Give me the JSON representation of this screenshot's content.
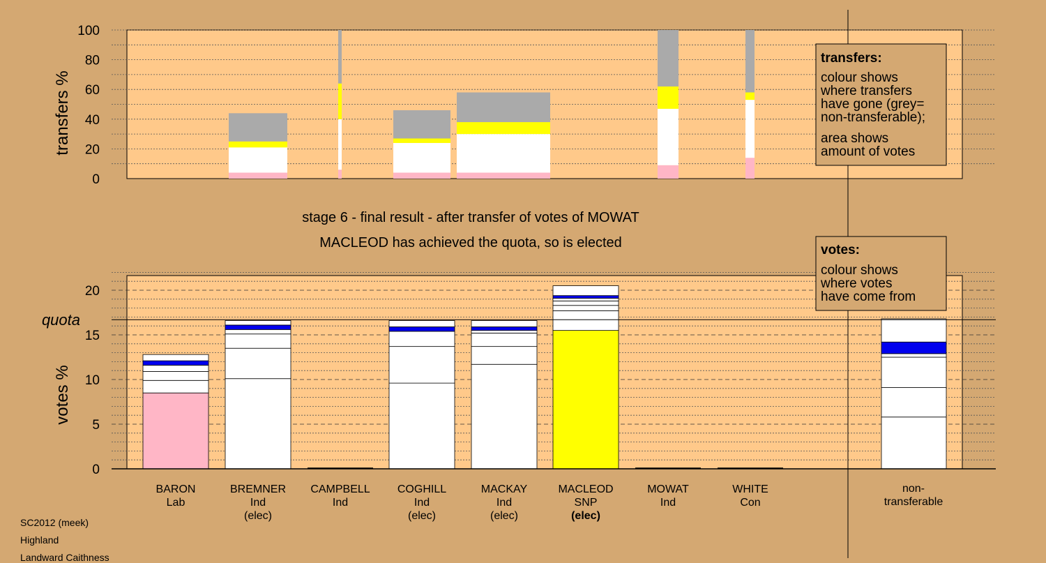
{
  "chart_data": [
    {
      "type": "bar",
      "ylabel": "transfers %",
      "ylim": [
        0,
        100
      ],
      "yticks": [
        0,
        20,
        40,
        60,
        80,
        100
      ],
      "colors": {
        "pink": "#ffb6c6",
        "white": "#ffffff",
        "yellow": "#ffff00",
        "grey": "#aaaaaa"
      },
      "bars": [
        {
          "candidate": "BREMNER",
          "segments": [
            {
              "color": "pink",
              "value": 4
            },
            {
              "color": "white",
              "value": 17
            },
            {
              "color": "yellow",
              "value": 4
            },
            {
              "color": "grey",
              "value": 19
            }
          ]
        },
        {
          "candidate": "CAMPBELL",
          "segments": [
            {
              "color": "pink",
              "value": 6
            },
            {
              "color": "white",
              "value": 34
            },
            {
              "color": "yellow",
              "value": 24
            },
            {
              "color": "grey",
              "value": 36
            }
          ]
        },
        {
          "candidate": "COGHILL",
          "segments": [
            {
              "color": "pink",
              "value": 4
            },
            {
              "color": "white",
              "value": 20
            },
            {
              "color": "yellow",
              "value": 3
            },
            {
              "color": "grey",
              "value": 19
            }
          ]
        },
        {
          "candidate": "MACKAY",
          "segments": [
            {
              "color": "pink",
              "value": 4
            },
            {
              "color": "white",
              "value": 26
            },
            {
              "color": "yellow",
              "value": 8
            },
            {
              "color": "grey",
              "value": 20
            }
          ]
        },
        {
          "candidate": "MOWAT",
          "segments": [
            {
              "color": "pink",
              "value": 9
            },
            {
              "color": "white",
              "value": 38
            },
            {
              "color": "yellow",
              "value": 15
            },
            {
              "color": "grey",
              "value": 38
            }
          ]
        },
        {
          "candidate": "WHITE",
          "segments": [
            {
              "color": "pink",
              "value": 14
            },
            {
              "color": "white",
              "value": 39
            },
            {
              "color": "yellow",
              "value": 5
            },
            {
              "color": "grey",
              "value": 42
            }
          ]
        }
      ],
      "legend": {
        "title": "transfers:",
        "line1": "colour shows",
        "line2": "where transfers",
        "line3": "have gone (grey=",
        "line4": "non-transferable);",
        "line5": "area shows",
        "line6": "amount of votes"
      }
    },
    {
      "type": "bar",
      "title_line1": "stage 6 - final result - after transfer of votes of MOWAT",
      "title_line2": "MACLEOD has achieved the quota, so is elected",
      "ylabel": "votes %",
      "ylim": [
        0,
        22
      ],
      "yticks": [
        0,
        5,
        10,
        15,
        20
      ],
      "quota_label": "quota",
      "quota": 16.7,
      "categories": [
        {
          "name": "BARON",
          "party": "Lab",
          "status": ""
        },
        {
          "name": "BREMNER",
          "party": "Ind",
          "status": "(elec)"
        },
        {
          "name": "CAMPBELL",
          "party": "Ind",
          "status": ""
        },
        {
          "name": "COGHILL",
          "party": "Ind",
          "status": "(elec)"
        },
        {
          "name": "MACKAY",
          "party": "Ind",
          "status": "(elec)"
        },
        {
          "name": "MACLEOD",
          "party": "SNP",
          "status": "(elec)"
        },
        {
          "name": "MOWAT",
          "party": "Ind",
          "status": ""
        },
        {
          "name": "WHITE",
          "party": "Con",
          "status": ""
        }
      ],
      "non_transferable": {
        "line1": "non-",
        "line2": "transferable"
      },
      "colors": {
        "pink": "#ffb6c6",
        "white": "#ffffff",
        "yellow": "#ffff00",
        "blue": "#0000ee"
      },
      "bars": [
        {
          "candidate": "BARON",
          "total": 12.8,
          "segments": [
            {
              "color": "pink",
              "value": 8.5
            },
            {
              "color": "white",
              "value": 1.4
            },
            {
              "color": "white",
              "value": 1.0
            },
            {
              "color": "white",
              "value": 0.7
            },
            {
              "color": "blue",
              "value": 0.5
            },
            {
              "color": "white",
              "value": 0.7
            }
          ]
        },
        {
          "candidate": "BREMNER",
          "total": 16.6,
          "segments": [
            {
              "color": "white",
              "value": 10.1
            },
            {
              "color": "white",
              "value": 3.4
            },
            {
              "color": "white",
              "value": 1.6
            },
            {
              "color": "white",
              "value": 0.5
            },
            {
              "color": "blue",
              "value": 0.5
            },
            {
              "color": "white",
              "value": 0.5
            }
          ]
        },
        {
          "candidate": "CAMPBELL",
          "total": 0,
          "segments": []
        },
        {
          "candidate": "COGHILL",
          "total": 16.6,
          "segments": [
            {
              "color": "white",
              "value": 9.6
            },
            {
              "color": "white",
              "value": 4.1
            },
            {
              "color": "white",
              "value": 1.7
            },
            {
              "color": "blue",
              "value": 0.5
            },
            {
              "color": "white",
              "value": 0.7
            }
          ]
        },
        {
          "candidate": "MACKAY",
          "total": 16.6,
          "segments": [
            {
              "color": "white",
              "value": 11.7
            },
            {
              "color": "white",
              "value": 2.0
            },
            {
              "color": "white",
              "value": 1.5
            },
            {
              "color": "white",
              "value": 0.3
            },
            {
              "color": "blue",
              "value": 0.4
            },
            {
              "color": "white",
              "value": 0.7
            }
          ]
        },
        {
          "candidate": "MACLEOD",
          "total": 20.5,
          "segments": [
            {
              "color": "yellow",
              "value": 15.5
            },
            {
              "color": "white",
              "value": 2.2
            },
            {
              "color": "white",
              "value": 0.6
            },
            {
              "color": "white",
              "value": 0.5
            },
            {
              "color": "white",
              "value": 0.3
            },
            {
              "color": "blue",
              "value": 0.3
            },
            {
              "color": "white",
              "value": 1.1
            }
          ]
        },
        {
          "candidate": "MOWAT",
          "total": 0,
          "segments": []
        },
        {
          "candidate": "WHITE",
          "total": 0,
          "segments": []
        },
        {
          "candidate": "non-transferable",
          "total": 16.8,
          "segments": [
            {
              "color": "white",
              "value": 5.8
            },
            {
              "color": "white",
              "value": 3.3
            },
            {
              "color": "white",
              "value": 3.4
            },
            {
              "color": "white",
              "value": 0.4
            },
            {
              "color": "blue",
              "value": 1.3
            },
            {
              "color": "white",
              "value": 2.6
            }
          ]
        }
      ],
      "legend": {
        "title": "votes:",
        "line1": "colour shows",
        "line2": "where votes",
        "line3": "have come from"
      }
    }
  ],
  "footer": {
    "line1": "SC2012 (meek)",
    "line2": "Highland",
    "line3": "Landward Caithness"
  }
}
